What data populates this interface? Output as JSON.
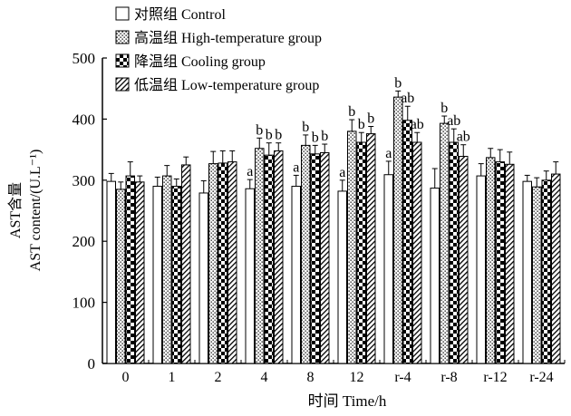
{
  "chart_data": {
    "type": "bar",
    "xlabel": "时间 Time/h",
    "ylabel_cn": "AST含量",
    "ylabel_en": "AST content/(U.L⁻¹)",
    "ylim": [
      0,
      500
    ],
    "yticks": [
      0,
      100,
      200,
      300,
      400,
      500
    ],
    "grid": false,
    "legend_position": "top-left",
    "categories": [
      "0",
      "1",
      "2",
      "4",
      "8",
      "12",
      "r-4",
      "r-8",
      "r-12",
      "r-24"
    ],
    "series": [
      {
        "name": "对照组 Control",
        "pattern": "none",
        "values": [
          298,
          290,
          279,
          286,
          290,
          282,
          309,
          287,
          307,
          298
        ],
        "errors": [
          13,
          15,
          20,
          15,
          18,
          18,
          22,
          32,
          20,
          10
        ],
        "labels": [
          "",
          "",
          "",
          "a",
          "a",
          "a",
          "a",
          "",
          "",
          ""
        ]
      },
      {
        "name": "高温组 High-temperature group",
        "pattern": "dots",
        "values": [
          285,
          307,
          327,
          352,
          357,
          380,
          436,
          393,
          337,
          289
        ],
        "errors": [
          12,
          17,
          20,
          17,
          17,
          19,
          10,
          12,
          15,
          15
        ],
        "labels": [
          "",
          "",
          "",
          "b",
          "b",
          "b",
          "b",
          "b",
          "",
          ""
        ]
      },
      {
        "name": "降温组 Cooling group",
        "pattern": "checker",
        "values": [
          307,
          290,
          328,
          341,
          343,
          362,
          398,
          362,
          330,
          300
        ],
        "errors": [
          23,
          12,
          20,
          20,
          14,
          16,
          23,
          22,
          20,
          15
        ],
        "labels": [
          "",
          "",
          "",
          "b",
          "b",
          "b",
          "ab",
          "ab",
          "",
          ""
        ]
      },
      {
        "name": "低温组 Low-temperature group",
        "pattern": "hatch",
        "values": [
          297,
          325,
          330,
          348,
          345,
          376,
          362,
          339,
          326,
          310
        ],
        "errors": [
          10,
          13,
          18,
          13,
          14,
          12,
          16,
          19,
          20,
          20
        ],
        "labels": [
          "",
          "",
          "",
          "b",
          "b",
          "b",
          "ab",
          "ab",
          "",
          ""
        ]
      }
    ]
  }
}
